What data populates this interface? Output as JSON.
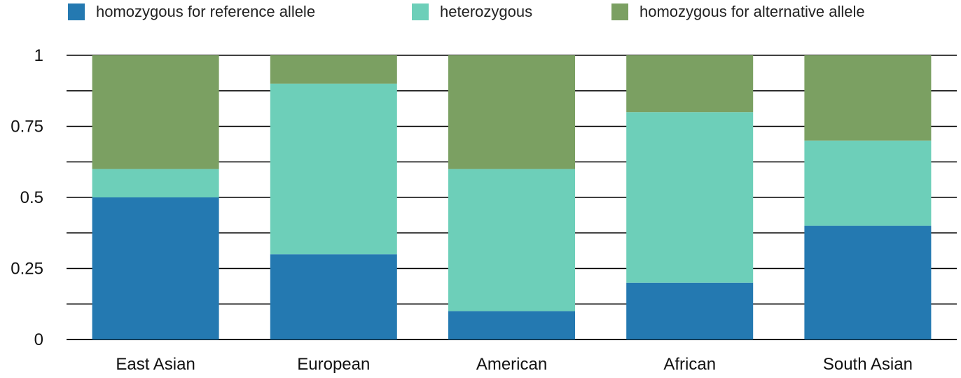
{
  "chart_data": {
    "type": "bar",
    "stacked": true,
    "categories": [
      "East Asian",
      "European",
      "American",
      "African",
      "South Asian"
    ],
    "series": [
      {
        "name": "homozygous for reference allele",
        "color": "#2479b1",
        "values": [
          0.5,
          0.3,
          0.1,
          0.2,
          0.4
        ]
      },
      {
        "name": "heterozygous",
        "color": "#6dcfb9",
        "values": [
          0.1,
          0.6,
          0.5,
          0.6,
          0.3
        ]
      },
      {
        "name": "homozygous for alternative allele",
        "color": "#7ba062",
        "values": [
          0.4,
          0.1,
          0.4,
          0.2,
          0.3
        ]
      }
    ],
    "y_ticks": [
      0,
      0.25,
      0.5,
      0.75,
      1
    ],
    "y_tick_labels": [
      "0",
      "0.25",
      "0.5",
      "0.75",
      "1"
    ],
    "ylim": [
      0,
      1
    ],
    "gridlines_y": [
      0,
      0.125,
      0.25,
      0.375,
      0.5,
      0.625,
      0.75,
      0.875,
      1
    ],
    "grid": true,
    "legend_position": "top"
  }
}
